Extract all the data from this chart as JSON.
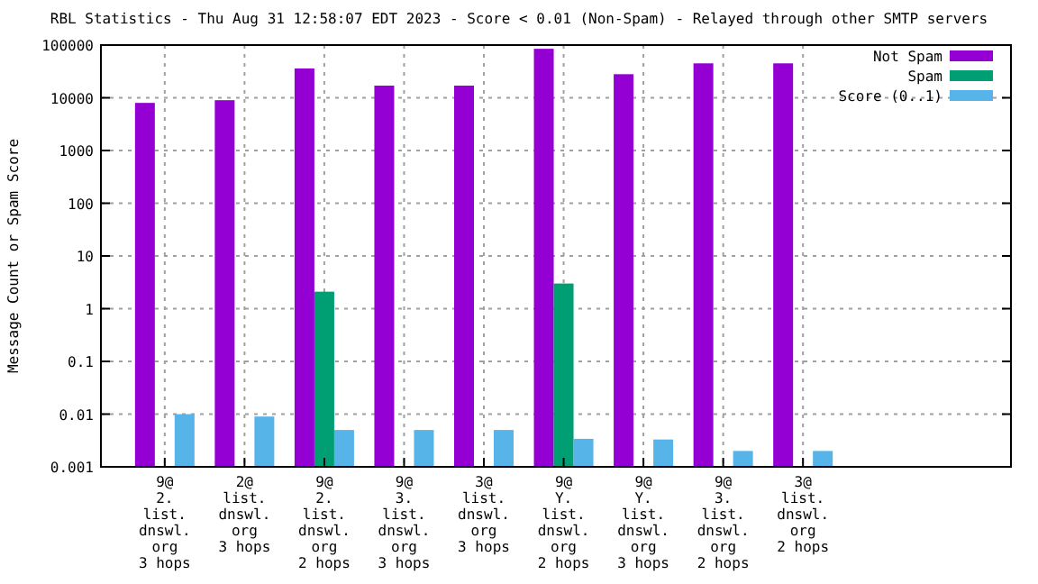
{
  "chart_data": {
    "type": "bar",
    "title": "RBL Statistics - Thu Aug 31 12:58:07 EDT 2023 - Score < 0.01 (Non-Spam) - Relayed through other SMTP servers",
    "ylabel": "Message Count or Spam Score",
    "categories": [
      "9@\n2.\nlist.\ndnswl.\norg\n3 hops",
      "2@\nlist.\ndnswl.\norg\n3 hops",
      "9@\n2.\nlist.\ndnswl.\norg\n2 hops",
      "9@\n3.\nlist.\ndnswl.\norg\n3 hops",
      "3@\nlist.\ndnswl.\norg\n3 hops",
      "9@\nY.\nlist.\ndnswl.\norg\n2 hops",
      "9@\nY.\nlist.\ndnswl.\norg\n3 hops",
      "9@\n3.\nlist.\ndnswl.\norg\n2 hops",
      "3@\nlist.\ndnswl.\norg\n2 hops"
    ],
    "series": [
      {
        "name": "Not Spam",
        "color": "#9400d3",
        "values": [
          8000,
          9000,
          36000,
          17000,
          17000,
          85000,
          28000,
          45000,
          45000
        ]
      },
      {
        "name": "Spam",
        "color": "#009e73",
        "values": [
          null,
          null,
          2.1,
          null,
          null,
          3,
          null,
          null,
          null
        ]
      },
      {
        "name": "Score (0..1)",
        "color": "#56b4e9",
        "values": [
          0.01,
          0.009,
          0.005,
          0.005,
          0.005,
          0.0034,
          0.0033,
          0.002,
          0.002
        ]
      }
    ],
    "log": true,
    "ylim": [
      0.001,
      100000
    ],
    "yticks": [
      100000,
      10000,
      1000,
      100,
      10,
      1,
      0.1,
      0.01,
      0.001
    ],
    "grid": true,
    "legend": "top right"
  }
}
